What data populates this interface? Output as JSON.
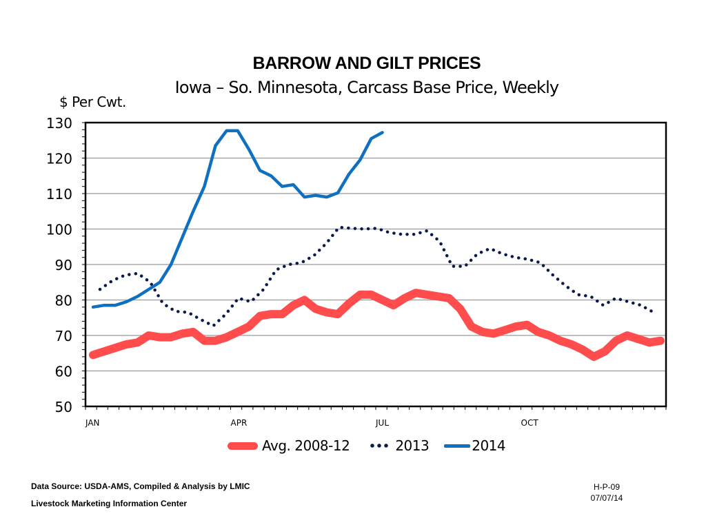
{
  "chart_data": {
    "type": "line",
    "title": "BARROW AND GILT PRICES",
    "subtitle": "Iowa – So. Minnesota, Carcass Base Price, Weekly",
    "ylabel": "$ Per Cwt.",
    "xlabel": "",
    "ylim": [
      50,
      130
    ],
    "yticks": [
      50,
      60,
      70,
      80,
      90,
      100,
      110,
      120,
      130
    ],
    "xtick_labels": [
      {
        "label": "JAN",
        "week": 0
      },
      {
        "label": "APR",
        "week": 13
      },
      {
        "label": "JUL",
        "week": 26
      },
      {
        "label": "OCT",
        "week": 39
      }
    ],
    "weeks_total": 52,
    "grid": true,
    "legend_position": "bottom",
    "series": [
      {
        "name": "Avg. 2008-12",
        "style": "thick-solid",
        "color": "#ff4d4d",
        "values": [
          64.5,
          65.5,
          66.5,
          67.5,
          68,
          70,
          69.5,
          69.5,
          70.5,
          71,
          68.5,
          68.5,
          69.5,
          71,
          72.5,
          75.5,
          76,
          76,
          78.5,
          80,
          77.5,
          76.5,
          76,
          79,
          81.5,
          81.5,
          80,
          78.5,
          80.5,
          82,
          81.5,
          81,
          80.5,
          77.5,
          72.5,
          71,
          70.5,
          71.5,
          72.5,
          73,
          71,
          70,
          68.5,
          67.5,
          66,
          64,
          65.5,
          68.5,
          70,
          69,
          68,
          68.5
        ]
      },
      {
        "name": "2013",
        "style": "dotted",
        "color": "#0b1a4d",
        "values": [
          83,
          85.5,
          87,
          87.5,
          85,
          79,
          76.8,
          76.5,
          74.5,
          72.7,
          76,
          80.5,
          79.5,
          83,
          88.5,
          90,
          90.5,
          92.5,
          96,
          100.5,
          100.2,
          100,
          100.2,
          99,
          98.5,
          98.5,
          99.5,
          96.5,
          89.5,
          89.5,
          93,
          94.5,
          93,
          92,
          91.5,
          90.5,
          87,
          84,
          81.5,
          81,
          78.5,
          80.5,
          79.5,
          78.5,
          76.5
        ]
      },
      {
        "name": "2014",
        "style": "solid",
        "color": "#1070c0",
        "values": [
          78,
          78.5,
          78.5,
          79.5,
          81,
          83,
          85,
          90,
          97.5,
          105,
          112,
          123.5,
          127.7,
          127.7,
          122.5,
          116.5,
          115,
          112,
          112.5,
          109,
          109.5,
          109,
          110.2,
          115.5,
          119.5,
          125.5,
          127.2
        ]
      }
    ]
  },
  "footer": {
    "source": "Data Source:  USDA-AMS, Compiled & Analysis by LMIC",
    "org": "Livestock Marketing Information Center",
    "code": "H-P-09",
    "date": "07/07/14"
  }
}
